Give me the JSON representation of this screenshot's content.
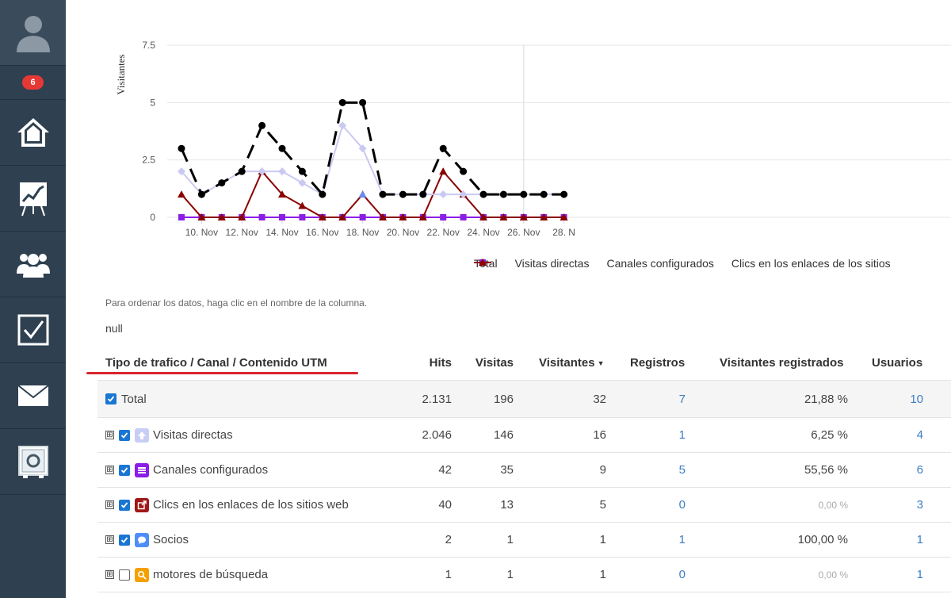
{
  "sidebar": {
    "badge": "6",
    "items": [
      {
        "icon": "home-icon"
      },
      {
        "icon": "chart-board-icon"
      },
      {
        "icon": "users-icon"
      },
      {
        "icon": "checkbox-icon"
      },
      {
        "icon": "envelope-icon"
      },
      {
        "icon": "safe-icon"
      }
    ]
  },
  "chart_data": {
    "type": "line",
    "ylabel": "Visitantes",
    "ylim": [
      0,
      7.5
    ],
    "yticks": [
      "0",
      "2.5",
      "5",
      "7.5"
    ],
    "xticks": [
      "10. Nov",
      "12. Nov",
      "14. Nov",
      "16. Nov",
      "18. Nov",
      "20. Nov",
      "22. Nov",
      "24. Nov",
      "26. Nov",
      "28. N"
    ],
    "x": [
      "9. Nov",
      "10. Nov",
      "11. Nov",
      "12. Nov",
      "13. Nov",
      "14. Nov",
      "15. Nov",
      "16. Nov",
      "17. Nov",
      "18. Nov",
      "19. Nov",
      "20. Nov",
      "21. Nov",
      "22. Nov",
      "23. Nov",
      "24. Nov",
      "25. Nov",
      "26. Nov",
      "27. Nov",
      "28. Nov"
    ],
    "series": [
      {
        "name": "Total",
        "color": "#000000",
        "marker": "circle",
        "values": [
          3,
          1,
          1.5,
          2,
          4,
          3,
          2,
          1,
          5,
          5,
          1,
          1,
          1,
          3,
          2,
          1,
          1,
          1,
          1,
          1
        ]
      },
      {
        "name": "Visitas directas",
        "color": "#c9c9f2",
        "marker": "diamond",
        "values": [
          2,
          1,
          1.5,
          2,
          2,
          2,
          1.5,
          1,
          4,
          3,
          1,
          1,
          1,
          1,
          1,
          1,
          1,
          1,
          1,
          1
        ]
      },
      {
        "name": "Canales configurados",
        "color": "#8a1ee6",
        "marker": "square",
        "values": [
          0,
          0,
          0,
          0,
          0,
          0,
          0,
          0,
          0,
          0,
          0,
          0,
          0,
          0,
          0,
          0,
          0,
          0,
          0,
          0
        ]
      },
      {
        "name": "Clics en los enlaces de los sitios web",
        "color": "#8b0000",
        "marker": "triangle",
        "values": [
          1,
          0,
          0,
          0,
          2,
          1,
          0.5,
          0,
          0,
          1,
          0,
          0,
          0,
          2,
          1,
          0,
          0,
          0,
          0,
          0
        ]
      }
    ]
  },
  "legend": [
    {
      "label": "Total",
      "color": "#000000",
      "marker": "circle"
    },
    {
      "label": "Visitas directas",
      "color": "#c9c9f2",
      "marker": "diamond"
    },
    {
      "label": "Canales configurados",
      "color": "#8a1ee6",
      "marker": "square"
    },
    {
      "label": "Clics en los enlaces de los sitios",
      "color": "#8b0000",
      "marker": "triangle"
    }
  ],
  "hint": "Para ordenar los datos, haga clic en el nombre de la columna.",
  "null_text": "null",
  "table": {
    "columns": [
      "Tipo de trafico / Canal / Contenido UTM",
      "Hits",
      "Visitas",
      "Visitantes",
      "Registros",
      "Visitantes registrados",
      "Usuarios"
    ],
    "rows": [
      {
        "label": "Total",
        "expand": "",
        "checked": true,
        "icon": "",
        "icon_color": "",
        "hits": "2.131",
        "visitas": "196",
        "visitantes": "32",
        "registros": "7",
        "vreg": "21,88 %",
        "usuarios": "10",
        "muted": false
      },
      {
        "label": "Visitas directas",
        "expand": "⊞",
        "checked": true,
        "icon": "arrow-up-icon",
        "icon_color": "#c8cdf5",
        "hits": "2.046",
        "visitas": "146",
        "visitantes": "16",
        "registros": "1",
        "vreg": "6,25 %",
        "usuarios": "4",
        "muted": false
      },
      {
        "label": "Canales configurados",
        "expand": "⊞",
        "checked": true,
        "icon": "list-icon",
        "icon_color": "#8a1ee6",
        "hits": "42",
        "visitas": "35",
        "visitantes": "9",
        "registros": "5",
        "vreg": "55,56 %",
        "usuarios": "6",
        "muted": false
      },
      {
        "label": "Clics en los enlaces de los sitios web",
        "expand": "⊞",
        "checked": true,
        "icon": "external-link-icon",
        "icon_color": "#a01818",
        "hits": "40",
        "visitas": "13",
        "visitantes": "5",
        "registros": "0",
        "vreg": "0,00 %",
        "usuarios": "3",
        "muted": true
      },
      {
        "label": "Socios",
        "expand": "⊞",
        "checked": true,
        "icon": "speech-bubble-icon",
        "icon_color": "#4f8ef7",
        "hits": "2",
        "visitas": "1",
        "visitantes": "1",
        "registros": "1",
        "vreg": "100,00 %",
        "usuarios": "1",
        "muted": false
      },
      {
        "label": "motores de búsqueda",
        "expand": "⊞",
        "checked": false,
        "icon": "magnifier-icon",
        "icon_color": "#f5a000",
        "hits": "1",
        "visitas": "1",
        "visitantes": "1",
        "registros": "0",
        "vreg": "0,00 %",
        "usuarios": "1",
        "muted": true
      }
    ]
  }
}
